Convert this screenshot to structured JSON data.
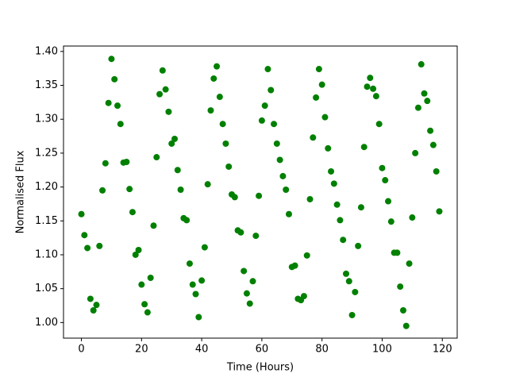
{
  "chart_data": {
    "type": "scatter",
    "xlabel": "Time (Hours)",
    "ylabel": "Normalised Flux",
    "x": [
      0,
      1,
      2,
      3,
      4,
      5,
      6,
      7,
      8,
      9,
      10,
      11,
      12,
      13,
      14,
      15,
      16,
      17,
      18,
      19,
      20,
      21,
      22,
      23,
      24,
      25,
      26,
      27,
      28,
      29,
      30,
      31,
      32,
      33,
      34,
      35,
      36,
      37,
      38,
      39,
      40,
      41,
      42,
      43,
      44,
      45,
      46,
      47,
      48,
      49,
      50,
      51,
      52,
      53,
      54,
      55,
      56,
      57,
      58,
      59,
      60,
      61,
      62,
      63,
      64,
      65,
      66,
      67,
      68,
      69,
      70,
      71,
      72,
      73,
      74,
      75,
      76,
      77,
      78,
      79,
      80,
      81,
      82,
      83,
      84,
      85,
      86,
      87,
      88,
      89,
      90,
      91,
      92,
      93,
      94,
      95,
      96,
      97,
      98,
      99,
      100,
      101,
      102,
      103,
      104,
      105,
      106,
      107,
      108,
      109,
      110,
      111,
      112,
      113,
      114,
      115,
      116,
      117,
      118,
      119
    ],
    "values": [
      1.16,
      1.129,
      1.11,
      1.035,
      1.018,
      1.026,
      1.113,
      1.195,
      1.235,
      1.324,
      1.389,
      1.359,
      1.32,
      1.293,
      1.236,
      1.237,
      1.197,
      1.163,
      1.1,
      1.107,
      1.056,
      1.027,
      1.015,
      1.066,
      1.143,
      1.244,
      1.337,
      1.372,
      1.344,
      1.311,
      1.264,
      1.271,
      1.225,
      1.196,
      1.154,
      1.151,
      1.087,
      1.056,
      1.042,
      1.008,
      1.062,
      1.111,
      1.204,
      1.313,
      1.36,
      1.378,
      1.333,
      1.293,
      1.264,
      1.23,
      1.189,
      1.185,
      1.136,
      1.133,
      1.076,
      1.043,
      1.028,
      1.061,
      1.128,
      1.187,
      1.298,
      1.32,
      1.374,
      1.343,
      1.293,
      1.264,
      1.24,
      1.216,
      1.196,
      1.16,
      1.082,
      1.084,
      1.035,
      1.033,
      1.039,
      1.099,
      1.182,
      1.273,
      1.332,
      1.374,
      1.351,
      1.303,
      1.257,
      1.223,
      1.205,
      1.174,
      1.151,
      1.122,
      1.072,
      1.061,
      1.011,
      1.045,
      1.113,
      1.17,
      1.259,
      1.348,
      1.361,
      1.345,
      1.334,
      1.293,
      1.228,
      1.21,
      1.179,
      1.149,
      1.103,
      1.103,
      1.053,
      1.018,
      0.995,
      1.087,
      1.155,
      1.25,
      1.317,
      1.381,
      1.338,
      1.327,
      1.283,
      1.262,
      1.223,
      1.164
    ],
    "color": "green",
    "xlim": [
      -5.95,
      124.95
    ],
    "xticks": [
      0,
      20,
      40,
      60,
      80,
      100,
      120
    ],
    "ylim": [
      0.977,
      1.408
    ],
    "yticks": [
      {
        "value": 1.0,
        "label": "1.00"
      },
      {
        "value": 1.05,
        "label": "1.05"
      },
      {
        "value": 1.1,
        "label": "1.10"
      },
      {
        "value": 1.15,
        "label": "1.15"
      },
      {
        "value": 1.2,
        "label": "1.20"
      },
      {
        "value": 1.25,
        "label": "1.25"
      },
      {
        "value": 1.3,
        "label": "1.30"
      },
      {
        "value": 1.35,
        "label": "1.35"
      },
      {
        "value": 1.4,
        "label": "1.40"
      }
    ]
  }
}
